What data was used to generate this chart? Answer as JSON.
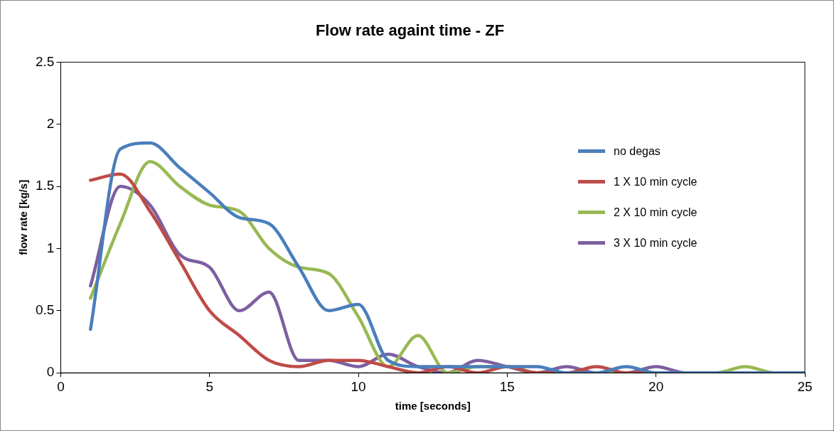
{
  "chart_data": {
    "type": "line",
    "title": "Flow rate againt time - ZF",
    "xlabel": "time [seconds]",
    "ylabel": "flow rate [kg/s]",
    "x": [
      1,
      2,
      3,
      4,
      5,
      6,
      7,
      8,
      9,
      10,
      11,
      12,
      13,
      14,
      15,
      16,
      17,
      18,
      19,
      20,
      21,
      22,
      23,
      24,
      25
    ],
    "xlim": [
      0,
      25
    ],
    "xticks": [
      0,
      5,
      10,
      15,
      20,
      25
    ],
    "ylim": [
      0,
      2.5
    ],
    "yticks": [
      0,
      0.5,
      1,
      1.5,
      2,
      2.5
    ],
    "grid": false,
    "legend": "right",
    "marker": "none",
    "line_style": "solid",
    "series": [
      {
        "name": "no degas",
        "color": "#4a7ebb",
        "values": [
          0.35,
          1.8,
          1.85,
          1.65,
          1.45,
          1.25,
          1.2,
          0.85,
          0.5,
          0.55,
          0.1,
          0.05,
          0.05,
          0.05,
          0.05,
          0.05,
          0,
          0,
          0.05,
          0,
          0,
          0,
          0,
          0,
          0
        ]
      },
      {
        "name": "1 X 10 min cycle",
        "color": "#be4b48",
        "values": [
          1.55,
          1.6,
          1.3,
          0.9,
          0.5,
          0.3,
          0.1,
          0.05,
          0.1,
          0.1,
          0.05,
          0,
          0.05,
          0,
          0.05,
          0,
          0,
          0.05,
          0,
          0,
          null,
          null,
          null,
          null,
          null
        ]
      },
      {
        "name": "2 X 10 min cycle",
        "color": "#98b954",
        "values": [
          0.6,
          1.2,
          1.7,
          1.5,
          1.35,
          1.3,
          1.0,
          0.85,
          0.8,
          0.45,
          0.05,
          0.3,
          0,
          0.05,
          0.05,
          0,
          0,
          0,
          0,
          0,
          0,
          0,
          0.05,
          0,
          0
        ]
      },
      {
        "name": "3 X 10 min cycle",
        "color": "#7d60a0",
        "values": [
          0.7,
          1.5,
          1.35,
          0.95,
          0.85,
          0.5,
          0.65,
          0.1,
          0.1,
          0.05,
          0.15,
          0.05,
          0,
          0.1,
          0.05,
          0,
          0.05,
          0,
          0,
          0.05,
          0,
          0,
          0,
          0,
          0
        ]
      }
    ]
  }
}
